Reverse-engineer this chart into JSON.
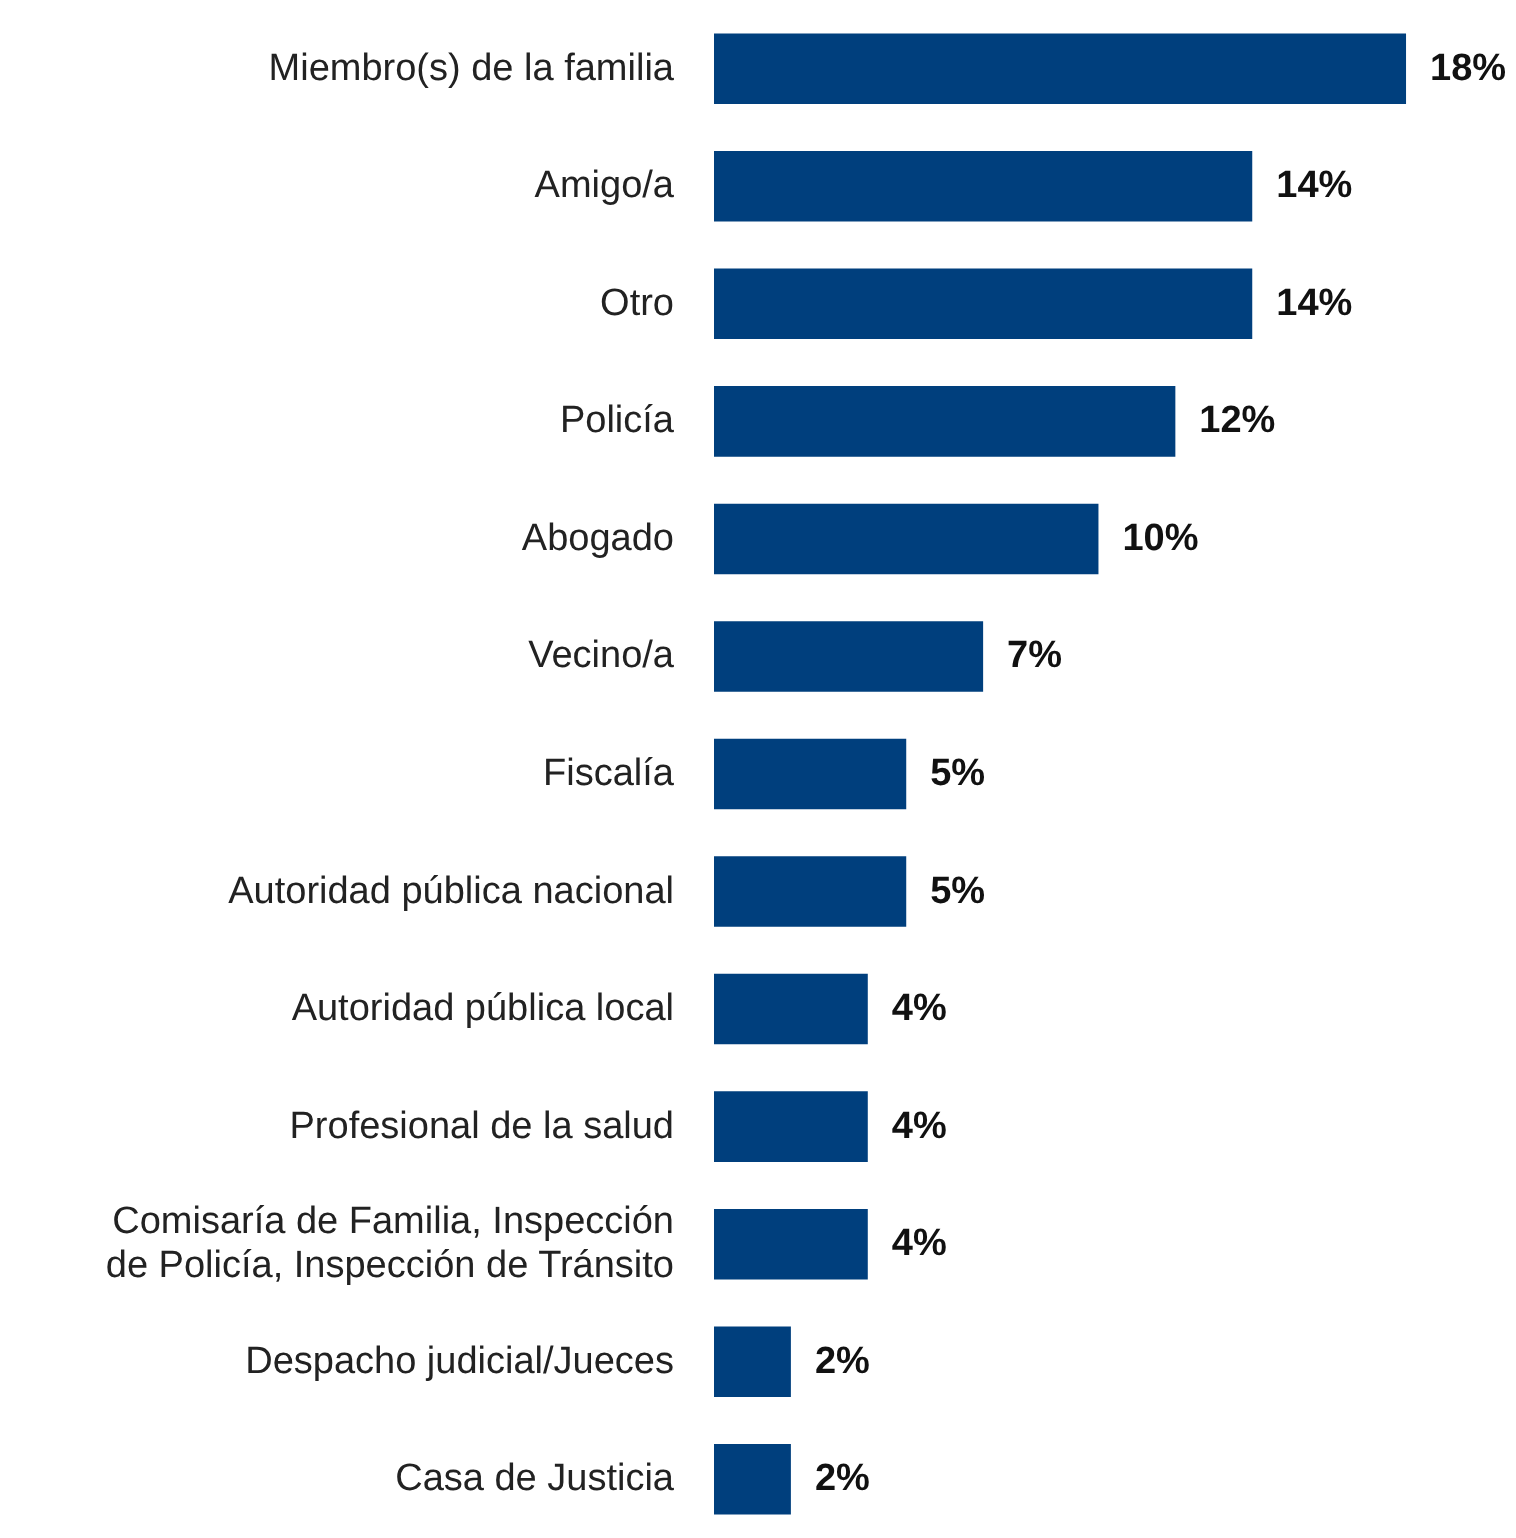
{
  "chart_data": {
    "type": "bar",
    "orientation": "horizontal",
    "categories": [
      "Miembro(s) de la familia",
      "Amigo/a",
      "Otro",
      "Policía",
      "Abogado",
      "Vecino/a",
      "Fiscalía",
      "Autoridad pública nacional",
      "Autoridad pública local",
      "Profesional de la salud",
      "Comisaría de Familia, Inspección\nde Policía, Inspección de Tránsito",
      "Despacho judicial/Jueces",
      "Casa de Justicia"
    ],
    "values": [
      18,
      14,
      14,
      12,
      10,
      7,
      5,
      5,
      4,
      4,
      4,
      2,
      2
    ],
    "value_labels": [
      "18%",
      "14%",
      "14%",
      "12%",
      "10%",
      "7%",
      "5%",
      "5%",
      "4%",
      "4%",
      "4%",
      "2%",
      "2%"
    ],
    "color": "#003f7d"
  }
}
